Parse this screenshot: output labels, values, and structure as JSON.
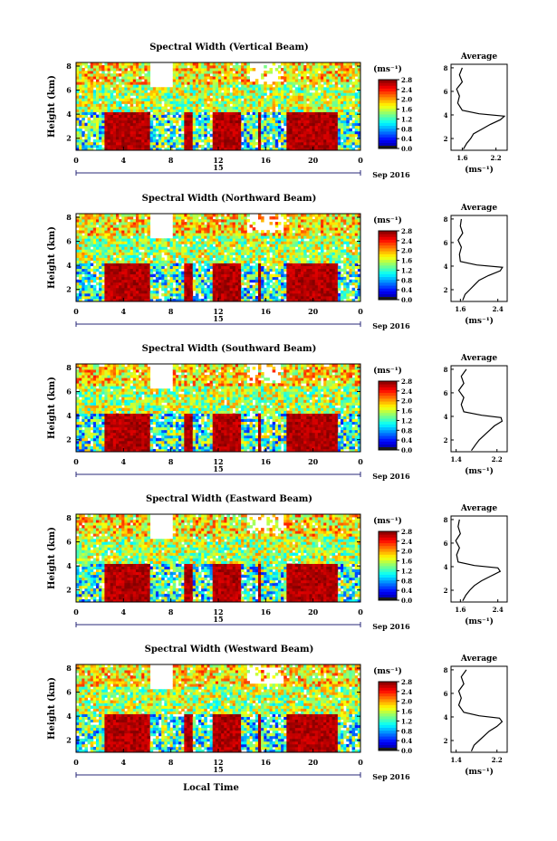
{
  "figure": {
    "xlabel": "Local Time",
    "date_label": "Sep 2016",
    "day_label": "15",
    "colorbar_unit": "(ms⁻¹)",
    "average_title": "Average",
    "average_xlabel": "(ms⁻¹)"
  },
  "chart_data": [
    {
      "type": "heatmap",
      "title": "Spectral Width (Vertical Beam)",
      "ylabel": "Height (km)",
      "xticks": [
        "0",
        "4",
        "8",
        "12",
        "16",
        "20",
        "0"
      ],
      "yticks": [
        "2",
        "4",
        "6",
        "8"
      ],
      "xlim": [
        0,
        24
      ],
      "ylim": [
        1,
        8.3
      ],
      "colorbar_ticks": [
        "0.0",
        "0.4",
        "0.8",
        "1.2",
        "1.6",
        "2.0",
        "2.4",
        "2.8"
      ],
      "colorbar_range": [
        0,
        2.8
      ],
      "average_profile": {
        "xticks": [
          "1.6",
          "2.2"
        ],
        "yticks": [
          "2",
          "4",
          "6",
          "8"
        ],
        "xlim": [
          1.4,
          2.4
        ],
        "points": [
          [
            1.62,
            1.1
          ],
          [
            1.68,
            1.6
          ],
          [
            1.75,
            2.0
          ],
          [
            1.8,
            2.4
          ],
          [
            1.95,
            2.8
          ],
          [
            2.1,
            3.2
          ],
          [
            2.28,
            3.6
          ],
          [
            2.35,
            3.9
          ],
          [
            1.9,
            4.1
          ],
          [
            1.6,
            4.4
          ],
          [
            1.52,
            5.0
          ],
          [
            1.55,
            5.6
          ],
          [
            1.5,
            6.2
          ],
          [
            1.6,
            6.8
          ],
          [
            1.55,
            7.4
          ],
          [
            1.6,
            8.0
          ]
        ]
      }
    },
    {
      "type": "heatmap",
      "title": "Spectral Width (Northward Beam)",
      "ylabel": "Height (km)",
      "xticks": [
        "0",
        "4",
        "8",
        "12",
        "16",
        "20",
        "0"
      ],
      "yticks": [
        "2",
        "4",
        "6",
        "8"
      ],
      "xlim": [
        0,
        24
      ],
      "ylim": [
        1,
        8.3
      ],
      "colorbar_ticks": [
        "0.0",
        "0.4",
        "0.8",
        "1.2",
        "1.6",
        "2.0",
        "2.4",
        "2.8"
      ],
      "colorbar_range": [
        0,
        2.8
      ],
      "average_profile": {
        "xticks": [
          "1.6",
          "2.4"
        ],
        "yticks": [
          "2",
          "4",
          "6",
          "8"
        ],
        "xlim": [
          1.4,
          2.6
        ],
        "points": [
          [
            1.65,
            1.1
          ],
          [
            1.7,
            1.6
          ],
          [
            1.8,
            2.0
          ],
          [
            1.9,
            2.4
          ],
          [
            2.0,
            2.8
          ],
          [
            2.2,
            3.2
          ],
          [
            2.45,
            3.6
          ],
          [
            2.5,
            3.9
          ],
          [
            1.95,
            4.1
          ],
          [
            1.6,
            4.4
          ],
          [
            1.58,
            5.0
          ],
          [
            1.62,
            5.6
          ],
          [
            1.55,
            6.2
          ],
          [
            1.65,
            6.8
          ],
          [
            1.6,
            7.4
          ],
          [
            1.62,
            8.0
          ]
        ]
      }
    },
    {
      "type": "heatmap",
      "title": "Spectral Width (Southward Beam)",
      "ylabel": "Height (km)",
      "xticks": [
        "0",
        "4",
        "8",
        "12",
        "16",
        "20",
        "0"
      ],
      "yticks": [
        "2",
        "4",
        "6",
        "8"
      ],
      "xlim": [
        0,
        24
      ],
      "ylim": [
        1,
        8.3
      ],
      "colorbar_ticks": [
        "0.0",
        "0.4",
        "0.8",
        "1.2",
        "1.6",
        "2.0",
        "2.4",
        "2.8"
      ],
      "colorbar_range": [
        0,
        2.8
      ],
      "average_profile": {
        "xticks": [
          "1.4",
          "2.2"
        ],
        "yticks": [
          "2",
          "4",
          "6",
          "8"
        ],
        "xlim": [
          1.3,
          2.4
        ],
        "points": [
          [
            1.7,
            1.1
          ],
          [
            1.78,
            1.6
          ],
          [
            1.85,
            2.0
          ],
          [
            1.95,
            2.4
          ],
          [
            2.05,
            2.8
          ],
          [
            2.15,
            3.2
          ],
          [
            2.3,
            3.6
          ],
          [
            2.28,
            3.9
          ],
          [
            1.9,
            4.1
          ],
          [
            1.55,
            4.4
          ],
          [
            1.5,
            5.0
          ],
          [
            1.55,
            5.6
          ],
          [
            1.45,
            6.2
          ],
          [
            1.55,
            6.8
          ],
          [
            1.5,
            7.4
          ],
          [
            1.6,
            8.0
          ]
        ]
      }
    },
    {
      "type": "heatmap",
      "title": "Spectral Width (Eastward Beam)",
      "ylabel": "Height (km)",
      "xticks": [
        "0",
        "4",
        "8",
        "12",
        "16",
        "20",
        "0"
      ],
      "yticks": [
        "2",
        "4",
        "6",
        "8"
      ],
      "xlim": [
        0,
        24
      ],
      "ylim": [
        1,
        8.3
      ],
      "colorbar_ticks": [
        "0.0",
        "0.4",
        "0.8",
        "1.2",
        "1.6",
        "2.0",
        "2.4",
        "2.8"
      ],
      "colorbar_range": [
        0,
        2.8
      ],
      "average_profile": {
        "xticks": [
          "1.6",
          "2.4"
        ],
        "yticks": [
          "2",
          "4",
          "6",
          "8"
        ],
        "xlim": [
          1.4,
          2.6
        ],
        "points": [
          [
            1.65,
            1.1
          ],
          [
            1.72,
            1.6
          ],
          [
            1.8,
            2.0
          ],
          [
            1.9,
            2.4
          ],
          [
            2.05,
            2.8
          ],
          [
            2.25,
            3.2
          ],
          [
            2.45,
            3.6
          ],
          [
            2.4,
            3.9
          ],
          [
            1.9,
            4.1
          ],
          [
            1.55,
            4.4
          ],
          [
            1.52,
            5.0
          ],
          [
            1.58,
            5.6
          ],
          [
            1.5,
            6.2
          ],
          [
            1.6,
            6.8
          ],
          [
            1.55,
            7.4
          ],
          [
            1.58,
            8.0
          ]
        ]
      }
    },
    {
      "type": "heatmap",
      "title": "Spectral Width (Westward Beam)",
      "ylabel": "Height (km)",
      "xticks": [
        "0",
        "4",
        "8",
        "12",
        "16",
        "20",
        "0"
      ],
      "yticks": [
        "2",
        "4",
        "6",
        "8"
      ],
      "xlim": [
        0,
        24
      ],
      "ylim": [
        1,
        8.3
      ],
      "colorbar_ticks": [
        "0.0",
        "0.4",
        "0.8",
        "1.2",
        "1.6",
        "2.0",
        "2.4",
        "2.8"
      ],
      "colorbar_range": [
        0,
        2.8
      ],
      "average_profile": {
        "xticks": [
          "1.4",
          "2.2"
        ],
        "yticks": [
          "2",
          "4",
          "6",
          "8"
        ],
        "xlim": [
          1.3,
          2.4
        ],
        "points": [
          [
            1.7,
            1.1
          ],
          [
            1.75,
            1.6
          ],
          [
            1.85,
            2.0
          ],
          [
            1.95,
            2.4
          ],
          [
            2.05,
            2.8
          ],
          [
            2.2,
            3.2
          ],
          [
            2.3,
            3.6
          ],
          [
            2.25,
            3.9
          ],
          [
            1.85,
            4.1
          ],
          [
            1.55,
            4.4
          ],
          [
            1.45,
            5.0
          ],
          [
            1.5,
            5.6
          ],
          [
            1.45,
            6.2
          ],
          [
            1.55,
            6.8
          ],
          [
            1.5,
            7.4
          ],
          [
            1.6,
            8.0
          ]
        ]
      }
    }
  ]
}
